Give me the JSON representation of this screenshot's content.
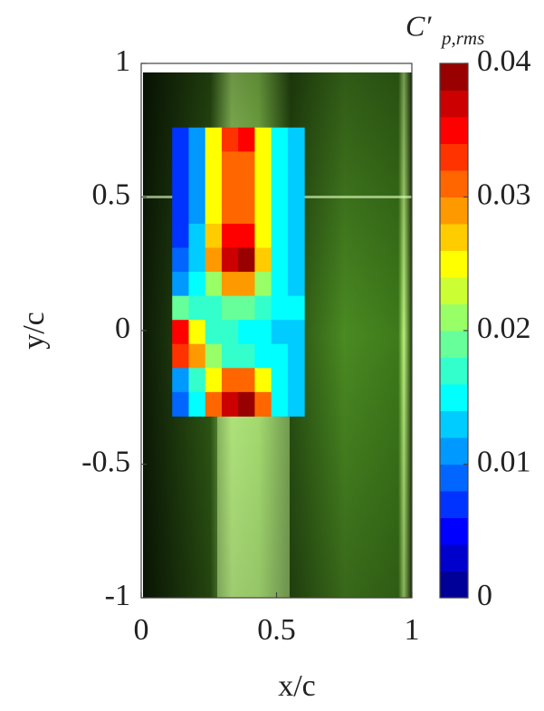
{
  "chart_data": {
    "type": "heatmap",
    "xlabel": "x/c",
    "ylabel": "y/c",
    "colorbar_label": {
      "main": "C′",
      "sub": "p,rms"
    },
    "xlim": [
      0,
      1
    ],
    "xticks": [
      0,
      0.5,
      1
    ],
    "ylim": [
      -1,
      1
    ],
    "yticks": [
      -1,
      -0.5,
      0,
      0.5,
      1
    ],
    "clim": [
      0,
      0.04
    ],
    "cticks": [
      0,
      0.01,
      0.02,
      0.03,
      0.04
    ],
    "colormap": "jet",
    "levels": 20,
    "x": [
      0.145,
      0.206,
      0.267,
      0.328,
      0.389,
      0.45,
      0.511,
      0.572
    ],
    "y": [
      0.715,
      0.625,
      0.535,
      0.445,
      0.355,
      0.265,
      0.175,
      0.085,
      -0.005,
      -0.095,
      -0.185,
      -0.275
    ],
    "values": [
      [
        0.006,
        0.01,
        0.024,
        0.033,
        0.034,
        0.024,
        0.014,
        0.012
      ],
      [
        0.006,
        0.01,
        0.025,
        0.031,
        0.031,
        0.024,
        0.014,
        0.012
      ],
      [
        0.006,
        0.01,
        0.025,
        0.03,
        0.03,
        0.024,
        0.014,
        0.012
      ],
      [
        0.006,
        0.011,
        0.026,
        0.031,
        0.031,
        0.025,
        0.015,
        0.012
      ],
      [
        0.007,
        0.012,
        0.027,
        0.034,
        0.035,
        0.026,
        0.015,
        0.012
      ],
      [
        0.008,
        0.013,
        0.028,
        0.037,
        0.038,
        0.027,
        0.015,
        0.012
      ],
      [
        0.01,
        0.015,
        0.022,
        0.028,
        0.028,
        0.02,
        0.015,
        0.013
      ],
      [
        0.018,
        0.017,
        0.017,
        0.018,
        0.018,
        0.016,
        0.015,
        0.014
      ],
      [
        0.034,
        0.026,
        0.016,
        0.016,
        0.015,
        0.014,
        0.013,
        0.013
      ],
      [
        0.033,
        0.028,
        0.02,
        0.016,
        0.016,
        0.015,
        0.014,
        0.013
      ],
      [
        0.01,
        0.016,
        0.024,
        0.03,
        0.03,
        0.024,
        0.014,
        0.012
      ],
      [
        0.008,
        0.014,
        0.03,
        0.037,
        0.038,
        0.03,
        0.015,
        0.012
      ]
    ]
  }
}
